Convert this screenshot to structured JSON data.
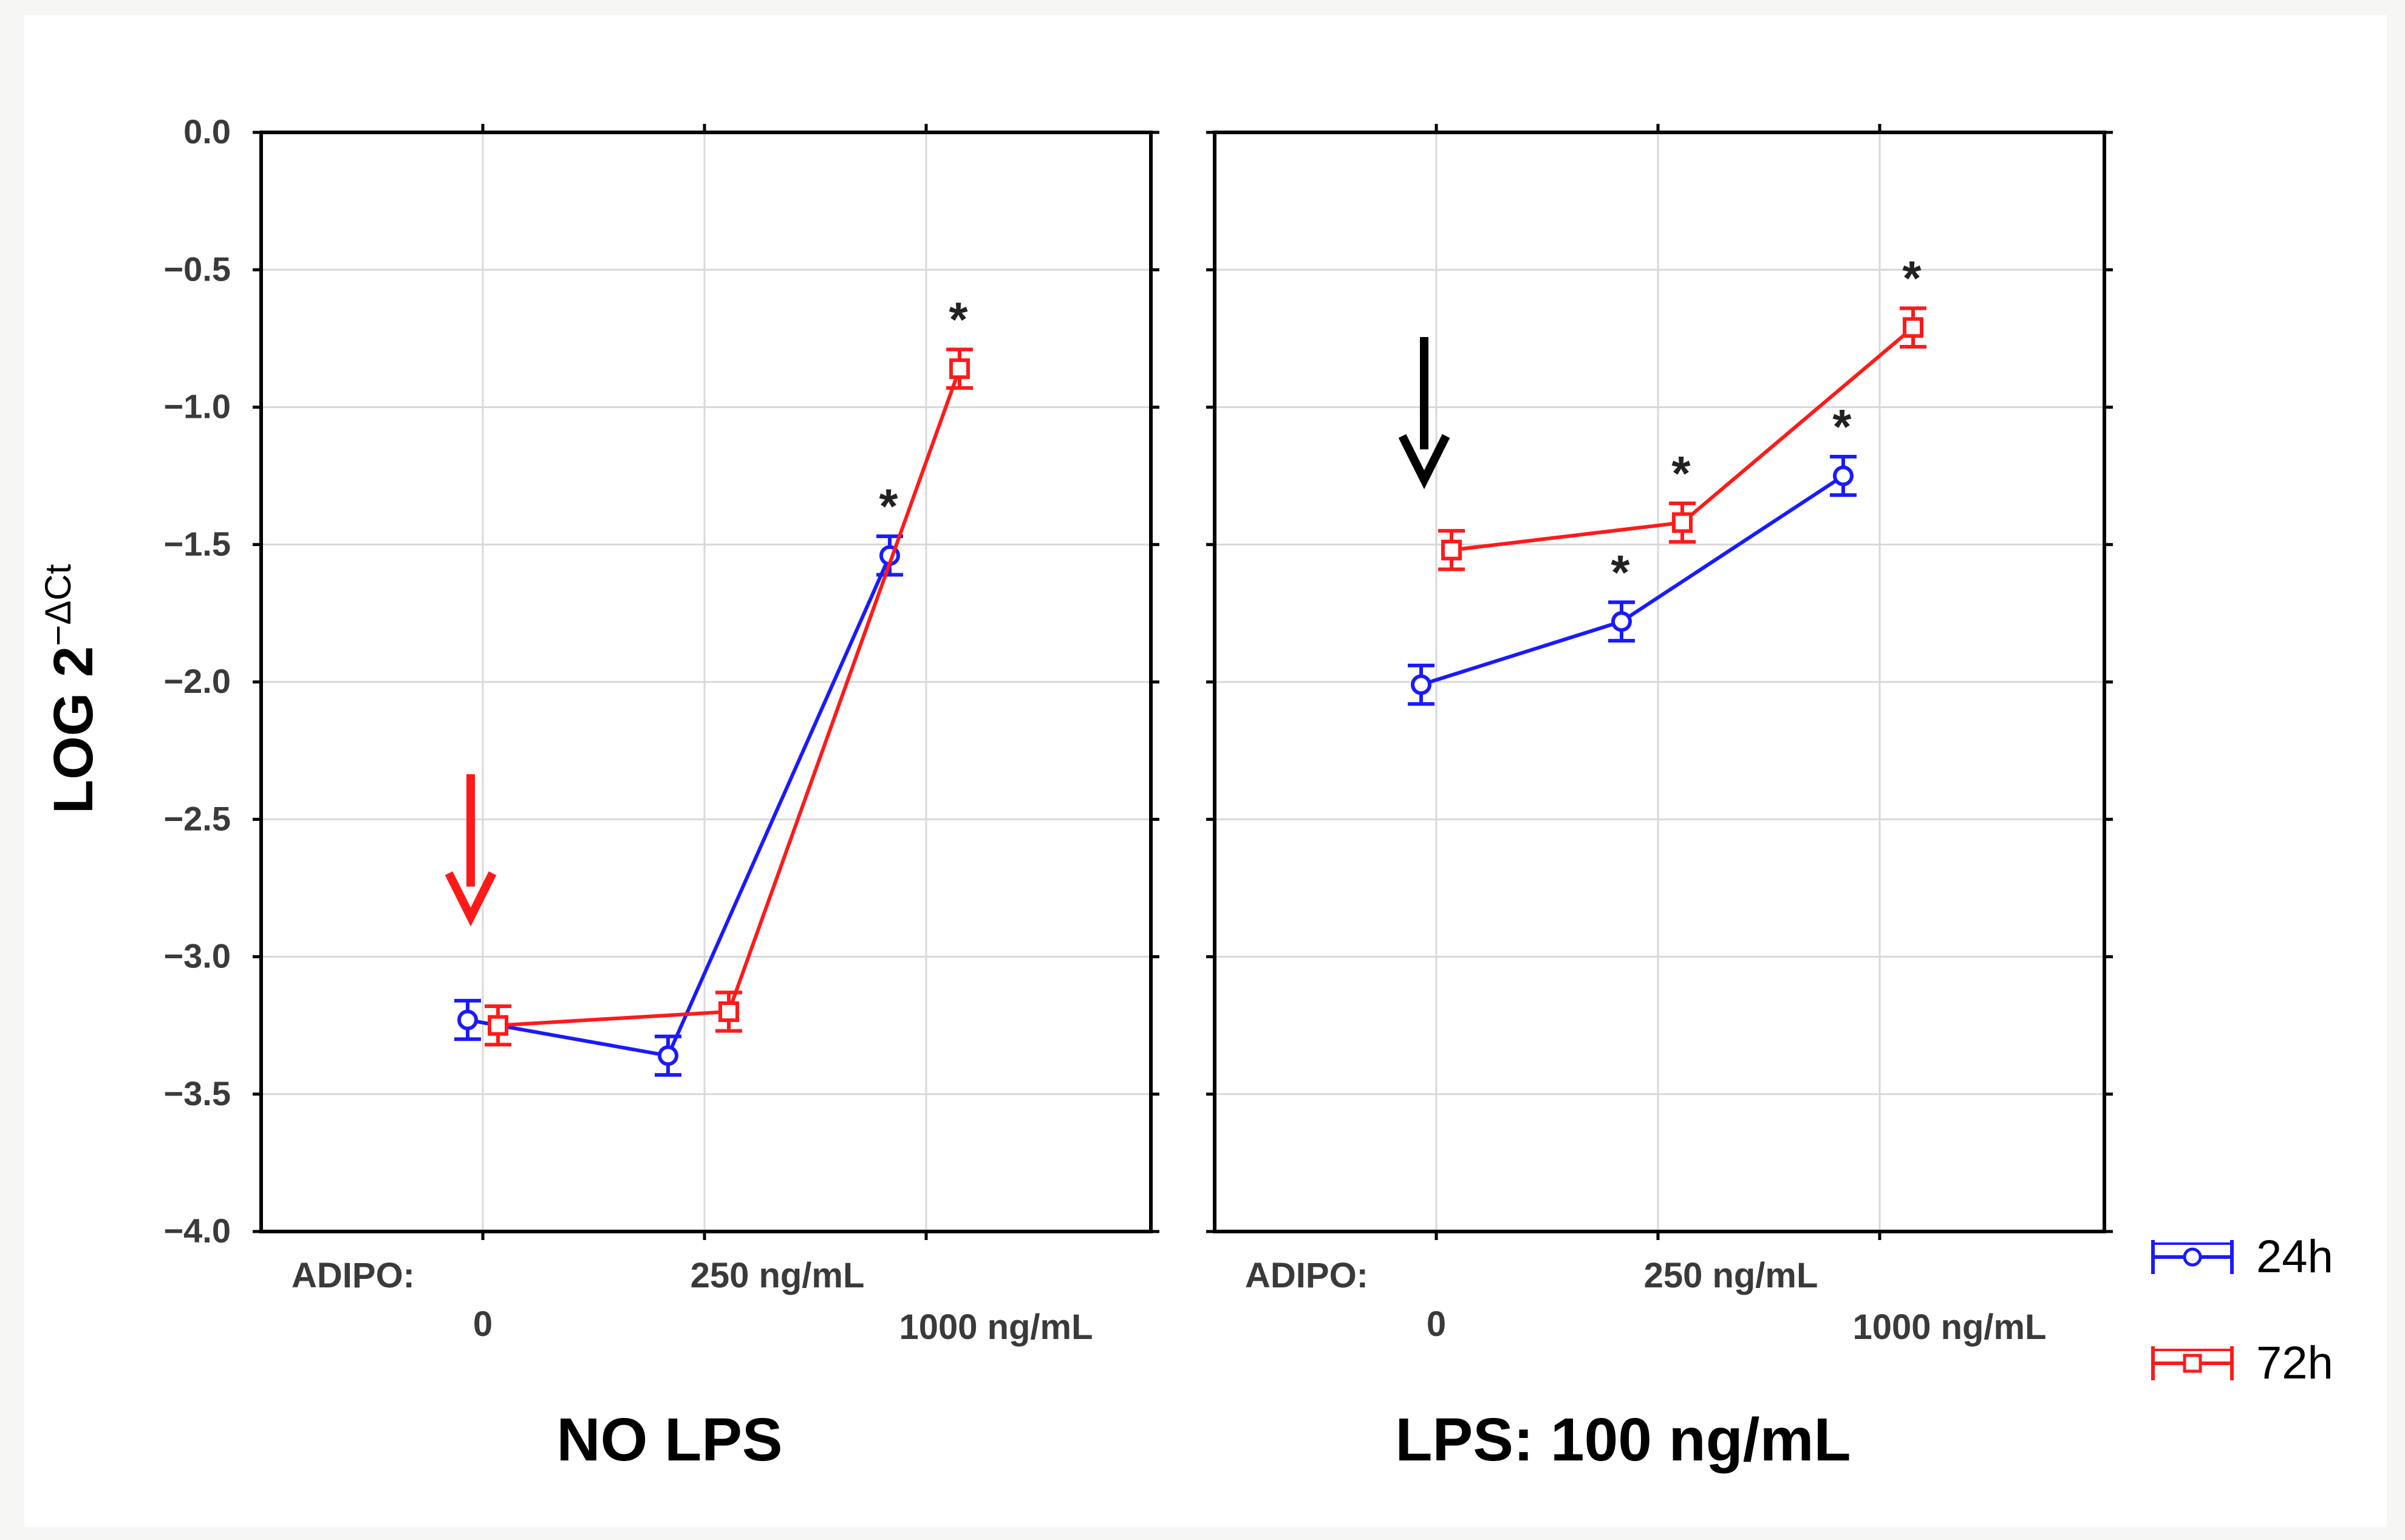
{
  "chart_data": [
    {
      "type": "line",
      "title": "NO LPS",
      "ylabel_main": "LOG 2",
      "ylabel_sup": "−ΔCt",
      "ylim": [
        -4.0,
        0.0
      ],
      "yticks": [
        "0.0",
        "−0.5",
        "−1.0",
        "−1.5",
        "−2.0",
        "−2.5",
        "−3.0",
        "−3.5",
        "−4.0"
      ],
      "x_prefix_label": "ADIPO:",
      "categories": [
        "0",
        "250 ng/mL",
        "1000 ng/mL"
      ],
      "series": [
        {
          "name": "24h",
          "color": "#1a1aff",
          "marker": "circle",
          "values": [
            -3.23,
            -3.36,
            -1.54
          ],
          "errors": [
            0.07,
            0.07,
            0.07
          ],
          "significant": [
            false,
            false,
            true
          ]
        },
        {
          "name": "72h",
          "color": "#ff1a1a",
          "marker": "square",
          "values": [
            -3.25,
            -3.2,
            -0.86
          ],
          "errors": [
            0.07,
            0.07,
            0.07
          ],
          "significant": [
            false,
            false,
            true
          ]
        }
      ],
      "annotation": {
        "type": "arrow",
        "color": "#ff1a1a",
        "direction": "down",
        "category_index": 0
      }
    },
    {
      "type": "line",
      "title": "LPS: 100 ng/mL",
      "ylim": [
        -4.0,
        0.0
      ],
      "x_prefix_label": "ADIPO:",
      "categories": [
        "0",
        "250 ng/mL",
        "1000 ng/mL"
      ],
      "series": [
        {
          "name": "24h",
          "color": "#1a1aff",
          "marker": "circle",
          "values": [
            -2.01,
            -1.78,
            -1.25
          ],
          "errors": [
            0.07,
            0.07,
            0.07
          ],
          "significant": [
            false,
            true,
            true
          ]
        },
        {
          "name": "72h",
          "color": "#ff1a1a",
          "marker": "square",
          "values": [
            -1.52,
            -1.42,
            -0.71
          ],
          "errors": [
            0.07,
            0.07,
            0.07
          ],
          "significant": [
            false,
            true,
            true
          ]
        }
      ],
      "annotation": {
        "type": "arrow",
        "color": "#000000",
        "direction": "down",
        "category_index": 0
      }
    }
  ],
  "legend": {
    "position": "bottom-right",
    "items": [
      "24h",
      "72h"
    ]
  },
  "significance_mark": "*"
}
